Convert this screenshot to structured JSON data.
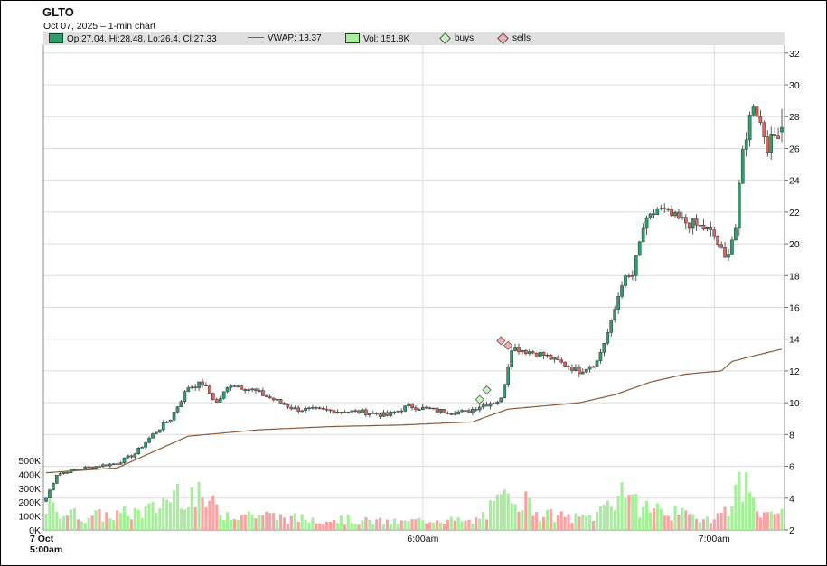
{
  "symbol": "GLTO",
  "subtitle": "Oct 07, 2025  – 1-min chart",
  "legend": {
    "ohlc": "Op:27.04, Hi:28.48, Lo:26.4, Cl:27.33",
    "vwap": "VWAP: 13.37",
    "volume": "Vol: 151.8K",
    "buys": "buys",
    "sells": "sells"
  },
  "colors": {
    "up": "#2e9e6b",
    "down": "#e0645c",
    "vol_up": "#a6ef9a",
    "vol_down": "#f5a3a3",
    "vwap": "#8a5a38",
    "grid": "#dcdcdc",
    "legend_bg": "#e0e0e0"
  },
  "chart_data": {
    "type": "candlestick",
    "interval": "1-min",
    "price_axis": {
      "ticks": [
        "2",
        "4",
        "6",
        "8",
        "10",
        "12",
        "14",
        "16",
        "18",
        "20",
        "22",
        "24",
        "26",
        "28",
        "30",
        "32"
      ],
      "range": [
        2,
        32.5
      ],
      "side": "right"
    },
    "volume_axis": {
      "ticks": [
        "0K",
        "100K",
        "200K",
        "300K",
        "400K",
        "500K"
      ],
      "range": [
        0,
        500000
      ],
      "side": "left"
    },
    "time_axis": {
      "labels": [
        "7 Oct\n5:00am",
        "6:00am",
        "7:00am"
      ]
    },
    "grid": true,
    "ohlc_keyframes": [
      [
        0,
        4.0
      ],
      [
        3,
        5.5
      ],
      [
        8,
        5.8
      ],
      [
        14,
        6.0
      ],
      [
        20,
        6.2
      ],
      [
        25,
        6.8
      ],
      [
        30,
        8.0
      ],
      [
        35,
        9.0
      ],
      [
        40,
        11.0
      ],
      [
        44,
        11.2
      ],
      [
        48,
        10.0
      ],
      [
        52,
        11.2
      ],
      [
        58,
        10.8
      ],
      [
        64,
        10.2
      ],
      [
        70,
        9.6
      ],
      [
        80,
        9.5
      ],
      [
        90,
        9.4
      ],
      [
        96,
        9.2
      ],
      [
        102,
        9.8
      ],
      [
        110,
        9.5
      ],
      [
        118,
        9.4
      ],
      [
        122,
        9.8
      ],
      [
        128,
        10.2
      ],
      [
        131,
        13.5
      ],
      [
        140,
        13.0
      ],
      [
        145,
        12.5
      ],
      [
        150,
        12.0
      ],
      [
        155,
        12.6
      ],
      [
        159,
        15.0
      ],
      [
        162,
        17.6
      ],
      [
        165,
        18.0
      ],
      [
        168,
        21.0
      ],
      [
        172,
        22.2
      ],
      [
        178,
        21.5
      ],
      [
        185,
        21.0
      ],
      [
        188,
        20.5
      ],
      [
        191,
        19.0
      ],
      [
        194,
        21.0
      ],
      [
        196,
        25.8
      ],
      [
        199,
        29.0
      ],
      [
        203,
        26.2
      ],
      [
        207,
        27.33
      ]
    ],
    "last_candle": {
      "open": 27.04,
      "high": 28.48,
      "low": 26.4,
      "close": 27.33
    },
    "vwap_keyframes": [
      [
        0,
        5.6
      ],
      [
        20,
        5.9
      ],
      [
        30,
        6.9
      ],
      [
        40,
        7.9
      ],
      [
        60,
        8.3
      ],
      [
        80,
        8.5
      ],
      [
        100,
        8.6
      ],
      [
        120,
        8.8
      ],
      [
        130,
        9.6
      ],
      [
        150,
        10.0
      ],
      [
        160,
        10.5
      ],
      [
        170,
        11.3
      ],
      [
        180,
        11.8
      ],
      [
        190,
        12.0
      ],
      [
        193,
        12.6
      ],
      [
        200,
        13.0
      ],
      [
        207,
        13.37
      ]
    ],
    "volume_profile": [
      [
        0,
        180000
      ],
      [
        10,
        110000
      ],
      [
        20,
        120000
      ],
      [
        30,
        160000
      ],
      [
        38,
        340000
      ],
      [
        44,
        240000
      ],
      [
        50,
        140000
      ],
      [
        60,
        120000
      ],
      [
        70,
        90000
      ],
      [
        80,
        90000
      ],
      [
        90,
        70000
      ],
      [
        100,
        60000
      ],
      [
        110,
        90000
      ],
      [
        120,
        60000
      ],
      [
        129,
        240000
      ],
      [
        131,
        360000
      ],
      [
        135,
        220000
      ],
      [
        140,
        120000
      ],
      [
        150,
        90000
      ],
      [
        155,
        120000
      ],
      [
        157,
        200000
      ],
      [
        160,
        260000
      ],
      [
        163,
        380000
      ],
      [
        165,
        200000
      ],
      [
        170,
        180000
      ],
      [
        175,
        150000
      ],
      [
        180,
        110000
      ],
      [
        185,
        100000
      ],
      [
        190,
        120000
      ],
      [
        196,
        380000
      ],
      [
        199,
        280000
      ],
      [
        203,
        100000
      ],
      [
        207,
        151800
      ]
    ],
    "candle_count": 208,
    "buys": [
      {
        "index": 122,
        "price": 10.2
      },
      {
        "index": 124,
        "price": 10.8
      }
    ],
    "sells": [
      {
        "index": 128,
        "price": 13.9
      },
      {
        "index": 130,
        "price": 13.6
      }
    ]
  }
}
